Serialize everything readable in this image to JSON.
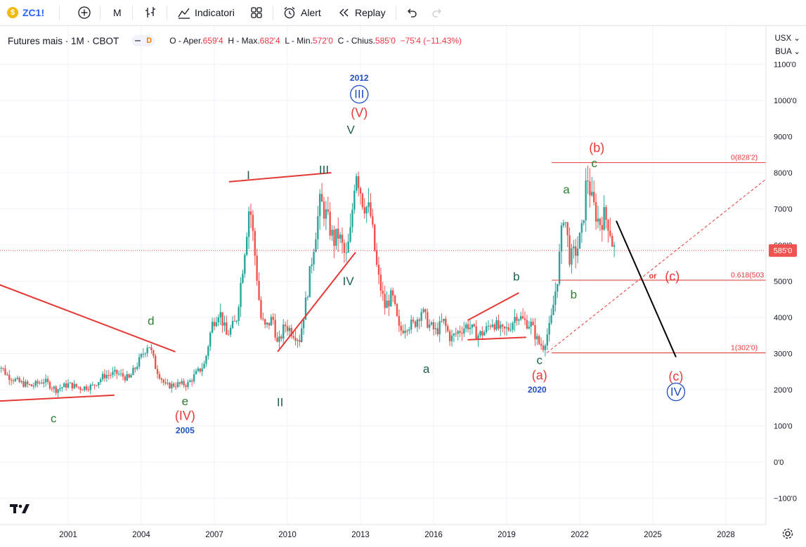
{
  "toolbar": {
    "symbol": "ZC1!",
    "symbol_icon": "coin-icon",
    "add_icon": "plus-circle-icon",
    "interval": "M",
    "bar_type_icon": "bars-icon",
    "indicators_label": "Indicatori",
    "templates_icon": "grid-icon",
    "alert_label": "Alert",
    "replay_label": "Replay",
    "undo_icon": "undo-icon",
    "redo_icon": "redo-icon"
  },
  "legend": {
    "title": "Futures mais · 1M · CBOT",
    "badge": "D",
    "open_label": "O - Aper.",
    "open_value": "659'4",
    "high_label": "H - Max.",
    "high_value": "682'4",
    "low_label": "L - Min.",
    "low_value": "572'0",
    "close_label": "C - Chius.",
    "close_value": "585'0",
    "change": "−75'4 (−11.43%)"
  },
  "axis_controls": {
    "currency": "USX",
    "session": "BUA"
  },
  "colors": {
    "up": "#26a69a",
    "down": "#ef5350",
    "accent": "#2962ff",
    "wave_red": "#e53935",
    "wave_green": "#2e7d32",
    "wave_dark_green": "#1b5e50",
    "wave_blue": "#1e4fc2"
  },
  "chart_data": {
    "type": "candlestick",
    "title": "Futures mais · 1M · CBOT",
    "x_range": [
      1998.0,
      2030.7
    ],
    "y_range": [
      -130,
      1200
    ],
    "x_ticks": [
      {
        "x": 2001.0,
        "label": "2001"
      },
      {
        "x": 2004.0,
        "label": "2004"
      },
      {
        "x": 2007.0,
        "label": "2007"
      },
      {
        "x": 2010.0,
        "label": "2010"
      },
      {
        "x": 2013.0,
        "label": "2013"
      },
      {
        "x": 2016.0,
        "label": "2016"
      },
      {
        "x": 2019.0,
        "label": "2019"
      },
      {
        "x": 2022.0,
        "label": "2022"
      },
      {
        "x": 2025.0,
        "label": "2025"
      },
      {
        "x": 2028.0,
        "label": "2028"
      }
    ],
    "y_ticks": [
      {
        "y": 1100,
        "label": "1100'0"
      },
      {
        "y": 1000,
        "label": "1000'0"
      },
      {
        "y": 900,
        "label": "900'0"
      },
      {
        "y": 800,
        "label": "800'0"
      },
      {
        "y": 700,
        "label": "700'0"
      },
      {
        "y": 600,
        "label": "600'0"
      },
      {
        "y": 500,
        "label": "500'0"
      },
      {
        "y": 400,
        "label": "400'0"
      },
      {
        "y": 300,
        "label": "300'0"
      },
      {
        "y": 200,
        "label": "200'0"
      },
      {
        "y": 100,
        "label": "100'0"
      },
      {
        "y": 0,
        "label": "0'0"
      },
      {
        "y": -100,
        "label": "−100'0"
      }
    ],
    "last_price": {
      "y": 585,
      "label": "585'0"
    },
    "price_path": [
      [
        1998.0,
        285
      ],
      [
        1998.5,
        240
      ],
      [
        1999.0,
        220
      ],
      [
        1999.5,
        210
      ],
      [
        2000.0,
        225
      ],
      [
        2000.5,
        200
      ],
      [
        2001.0,
        215
      ],
      [
        2001.5,
        205
      ],
      [
        2002.0,
        210
      ],
      [
        2002.5,
        240
      ],
      [
        2003.0,
        245
      ],
      [
        2003.5,
        230
      ],
      [
        2004.0,
        290
      ],
      [
        2004.3,
        330
      ],
      [
        2004.6,
        260
      ],
      [
        2005.0,
        210
      ],
      [
        2005.5,
        215
      ],
      [
        2005.9,
        215
      ],
      [
        2006.2,
        240
      ],
      [
        2006.6,
        270
      ],
      [
        2006.9,
        380
      ],
      [
        2007.2,
        420
      ],
      [
        2007.5,
        350
      ],
      [
        2007.9,
        390
      ],
      [
        2008.2,
        560
      ],
      [
        2008.45,
        720
      ],
      [
        2008.7,
        550
      ],
      [
        2008.9,
        400
      ],
      [
        2009.1,
        370
      ],
      [
        2009.4,
        400
      ],
      [
        2009.6,
        320
      ],
      [
        2009.9,
        380
      ],
      [
        2010.2,
        360
      ],
      [
        2010.5,
        340
      ],
      [
        2010.8,
        460
      ],
      [
        2011.1,
        610
      ],
      [
        2011.35,
        720
      ],
      [
        2011.6,
        680
      ],
      [
        2011.9,
        610
      ],
      [
        2012.1,
        630
      ],
      [
        2012.4,
        560
      ],
      [
        2012.6,
        640
      ],
      [
        2012.8,
        820
      ],
      [
        2013.1,
        720
      ],
      [
        2013.4,
        690
      ],
      [
        2013.7,
        520
      ],
      [
        2014.0,
        430
      ],
      [
        2014.3,
        460
      ],
      [
        2014.6,
        360
      ],
      [
        2014.9,
        380
      ],
      [
        2015.2,
        380
      ],
      [
        2015.5,
        420
      ],
      [
        2015.8,
        380
      ],
      [
        2016.1,
        360
      ],
      [
        2016.4,
        390
      ],
      [
        2016.7,
        340
      ],
      [
        2017.0,
        360
      ],
      [
        2017.4,
        380
      ],
      [
        2017.8,
        350
      ],
      [
        2018.1,
        360
      ],
      [
        2018.4,
        390
      ],
      [
        2018.8,
        360
      ],
      [
        2019.1,
        370
      ],
      [
        2019.4,
        410
      ],
      [
        2019.7,
        390
      ],
      [
        2020.0,
        380
      ],
      [
        2020.3,
        330
      ],
      [
        2020.5,
        320
      ],
      [
        2020.8,
        380
      ],
      [
        2021.1,
        520
      ],
      [
        2021.35,
        700
      ],
      [
        2021.6,
        560
      ],
      [
        2021.9,
        590
      ],
      [
        2022.1,
        640
      ],
      [
        2022.3,
        800
      ],
      [
        2022.5,
        720
      ],
      [
        2022.8,
        660
      ],
      [
        2023.0,
        680
      ],
      [
        2023.2,
        660
      ],
      [
        2023.35,
        600
      ],
      [
        2023.45,
        585
      ]
    ],
    "annotations": [
      {
        "text": "2012",
        "x": 2012.95,
        "y": 1062,
        "style": "year"
      },
      {
        "text": "III",
        "x": 2012.95,
        "y": 1017,
        "style": "circled-blue"
      },
      {
        "text": "(V)",
        "x": 2012.95,
        "y": 966,
        "style": "red"
      },
      {
        "text": "V",
        "x": 2012.6,
        "y": 918,
        "style": "dark-green"
      },
      {
        "text": "I",
        "x": 2008.4,
        "y": 793,
        "style": "dark-green"
      },
      {
        "text": "III",
        "x": 2011.5,
        "y": 808,
        "style": "dark-green"
      },
      {
        "text": "IV",
        "x": 2012.5,
        "y": 500,
        "style": "dark-green"
      },
      {
        "text": "II",
        "x": 2009.7,
        "y": 165,
        "style": "dark-green"
      },
      {
        "text": "d",
        "x": 2004.4,
        "y": 390,
        "style": "green"
      },
      {
        "text": "e",
        "x": 2005.8,
        "y": 168,
        "style": "green"
      },
      {
        "text": "(IV)",
        "x": 2005.8,
        "y": 128,
        "style": "red"
      },
      {
        "text": "2005",
        "x": 2005.8,
        "y": 87,
        "style": "year"
      },
      {
        "text": "c",
        "x": 2000.4,
        "y": 120,
        "style": "green"
      },
      {
        "text": "a",
        "x": 2015.7,
        "y": 257,
        "style": "dark-green"
      },
      {
        "text": "b",
        "x": 2019.4,
        "y": 513,
        "style": "dark-green"
      },
      {
        "text": "c",
        "x": 2020.35,
        "y": 282,
        "style": "dark-green"
      },
      {
        "text": "(a)",
        "x": 2020.35,
        "y": 240,
        "style": "red"
      },
      {
        "text": "2020",
        "x": 2020.25,
        "y": 200,
        "style": "year"
      },
      {
        "text": "a",
        "x": 2021.45,
        "y": 753,
        "style": "green"
      },
      {
        "text": "b",
        "x": 2021.75,
        "y": 463,
        "style": "green"
      },
      {
        "text": "c",
        "x": 2022.6,
        "y": 826,
        "style": "green"
      },
      {
        "text": "(b)",
        "x": 2022.7,
        "y": 869,
        "style": "red"
      },
      {
        "text": "or",
        "x": 2025.0,
        "y": 514,
        "style": "red-small"
      },
      {
        "text": "(c)",
        "x": 2025.8,
        "y": 514,
        "style": "red"
      },
      {
        "text": "(c)",
        "x": 2025.95,
        "y": 237,
        "style": "red"
      },
      {
        "text": "IV",
        "x": 2025.95,
        "y": 194,
        "style": "circled-blue"
      }
    ],
    "fib_levels": [
      {
        "label": "0(828'2)",
        "y": 828,
        "x1": 2020.85,
        "x2": 2030.5
      },
      {
        "label": "0.618(503",
        "y": 503,
        "x1": 2020.85,
        "x2": 2030.5
      },
      {
        "label": "1(302'0)",
        "y": 302,
        "x1": 2020.85,
        "x2": 2030.5
      }
    ],
    "trendlines": [
      {
        "x1": 1998.0,
        "y1": 495,
        "x2": 2005.4,
        "y2": 305,
        "color": "red"
      },
      {
        "x1": 1998.0,
        "y1": 168,
        "x2": 2002.9,
        "y2": 185,
        "color": "red"
      },
      {
        "x1": 2007.6,
        "y1": 775,
        "x2": 2011.8,
        "y2": 800,
        "color": "red"
      },
      {
        "x1": 2009.6,
        "y1": 305,
        "x2": 2012.8,
        "y2": 580,
        "color": "red"
      },
      {
        "x1": 2017.4,
        "y1": 392,
        "x2": 2019.5,
        "y2": 468,
        "color": "red"
      },
      {
        "x1": 2017.4,
        "y1": 338,
        "x2": 2019.8,
        "y2": 345,
        "color": "red"
      },
      {
        "x1": 2023.5,
        "y1": 667,
        "x2": 2025.95,
        "y2": 290,
        "color": "black"
      },
      {
        "x1": 2020.65,
        "y1": 302,
        "x2": 2030.5,
        "y2": 828,
        "color": "red-dashed"
      }
    ]
  }
}
